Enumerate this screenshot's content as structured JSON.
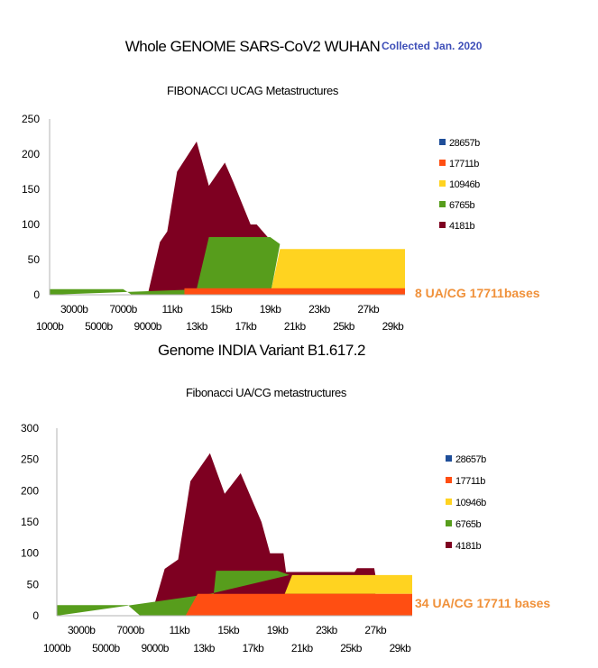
{
  "header": {
    "title": "Whole GENOME SARS-CoV2 WUHAN",
    "collected": "Collected Jan. 2020"
  },
  "colors": {
    "28657b": "#1f4e99",
    "17711b": "#ff4e12",
    "10946b": "#ffd320",
    "6765b": "#579d1c",
    "4181b": "#7e0021",
    "note": "#f0913a"
  },
  "charts": [
    {
      "title": "",
      "subtitle": "FIBONACCI UCAG Metastructures",
      "note": "8 UA/CG 17711bases",
      "chart_data": {
        "type": "area",
        "ylim": [
          0,
          250
        ],
        "yticks": [
          "0",
          "50",
          "100",
          "150",
          "200",
          "250"
        ],
        "xlim": [
          0,
          29000
        ],
        "xticks_row1": [
          "3000b",
          "7000b",
          "11kb",
          "15kb",
          "19kb",
          "23kb",
          "27kb"
        ],
        "xticks_row2": [
          "1000b",
          "5000b",
          "9000b",
          "13kb",
          "17kb",
          "21kb",
          "25kb",
          "29kb"
        ],
        "legend": [
          "28657b",
          "17711b",
          "10946b",
          "6765b",
          "4181b"
        ],
        "legend_position": "right",
        "grid": false,
        "series": [
          {
            "name": "4181b",
            "x": [
              8000,
              9000,
              9600,
              10400,
              12000,
              13000,
              14300,
              15000,
              16400,
              16900,
              17900,
              18100
            ],
            "y": [
              0,
              75,
              90,
              175,
              218,
              155,
              188,
              160,
              100,
              100,
              80,
              80
            ]
          },
          {
            "name": "6765b",
            "x": [
              0,
              6000,
              6700,
              11500,
              12000,
              13000,
              18000,
              18800,
              18100,
              12500
            ],
            "y": [
              8,
              8,
              0,
              0,
              8,
              82,
              82,
              72,
              8,
              8
            ]
          },
          {
            "name": "10946b",
            "x": [
              18100,
              18800,
              29000,
              29000
            ],
            "y": [
              8,
              65,
              65,
              8
            ]
          },
          {
            "name": "17711b",
            "x": [
              11000,
              29000
            ],
            "y": [
              8,
              8
            ]
          }
        ]
      }
    },
    {
      "title": "Genome INDIA Variant B1.617.2",
      "subtitle": "Fibonacci UA/CG metastructures",
      "note": "34 UA/CG 17711 bases",
      "chart_data": {
        "type": "area",
        "ylim": [
          0,
          300
        ],
        "yticks": [
          "0",
          "50",
          "100",
          "150",
          "200",
          "250",
          "300"
        ],
        "xlim": [
          0,
          29000
        ],
        "xticks_row1": [
          "3000b",
          "7000b",
          "11kb",
          "15kb",
          "19kb",
          "23kb",
          "27kb"
        ],
        "xticks_row2": [
          "1000b",
          "5000b",
          "9000b",
          "13kb",
          "17kb",
          "21kb",
          "25kb",
          "29kb"
        ],
        "legend": [
          "28657b",
          "17711b",
          "10946b",
          "6765b",
          "4181b"
        ],
        "legend_position": "right",
        "grid": false,
        "series": [
          {
            "name": "4181b",
            "x": [
              7700,
              8800,
              9900,
              10900,
              12500,
              13700,
              15000,
              16700,
              17400,
              18500,
              18700,
              24300,
              24500,
              25900,
              26000
            ],
            "y": [
              0,
              75,
              90,
              215,
              260,
              195,
              228,
              150,
              100,
              100,
              70,
              70,
              76,
              76,
              65
            ]
          },
          {
            "name": "6765b",
            "x": [
              0,
              5800,
              6800,
              11500,
              12800,
              13000,
              18000,
              19000,
              12500
            ],
            "y": [
              17,
              17,
              0,
              0,
              35,
              72,
              72,
              65,
              35
            ]
          },
          {
            "name": "10946b",
            "x": [
              18600,
              19200,
              29000,
              29000
            ],
            "y": [
              35,
              65,
              65,
              35
            ]
          },
          {
            "name": "17711b",
            "x": [
              10500,
              11500,
              29000,
              29000
            ],
            "y": [
              0,
              35,
              35,
              0
            ]
          }
        ]
      }
    }
  ]
}
